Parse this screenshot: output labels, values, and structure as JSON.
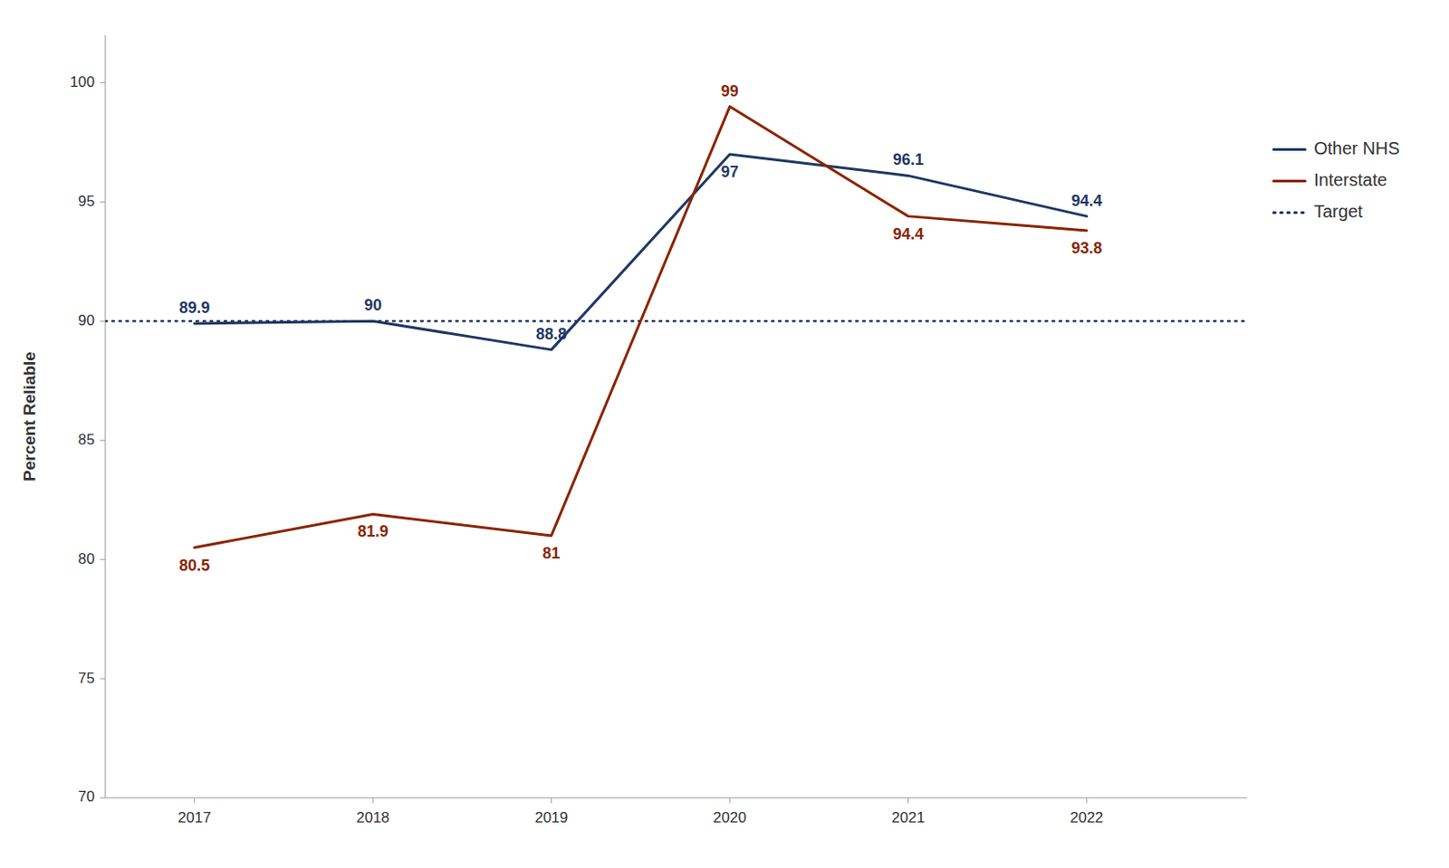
{
  "chart_data": {
    "type": "line",
    "x": [
      2017,
      2018,
      2019,
      2020,
      2021,
      2022
    ],
    "series": [
      {
        "name": "Other NHS",
        "color": "#1F3864",
        "values": [
          89.9,
          90.0,
          88.8,
          97.0,
          96.1,
          94.4
        ]
      },
      {
        "name": "Interstate",
        "color": "#8B2500",
        "values": [
          80.5,
          81.9,
          81.0,
          99.0,
          94.4,
          93.8
        ]
      }
    ],
    "target": {
      "name": "Target",
      "value": 90.0,
      "color": "#1F3864",
      "line_style": "dotted"
    },
    "ylabel": "Percent Reliable",
    "xlim": [
      2016.5,
      2022.9
    ],
    "xticks": [
      2017,
      2018,
      2019,
      2020,
      2021,
      2022
    ],
    "ylim": [
      70,
      102
    ],
    "yticks": [
      70,
      75,
      80,
      85,
      90,
      95,
      100
    ],
    "grid": false,
    "legend": "right",
    "data_labels": true
  }
}
